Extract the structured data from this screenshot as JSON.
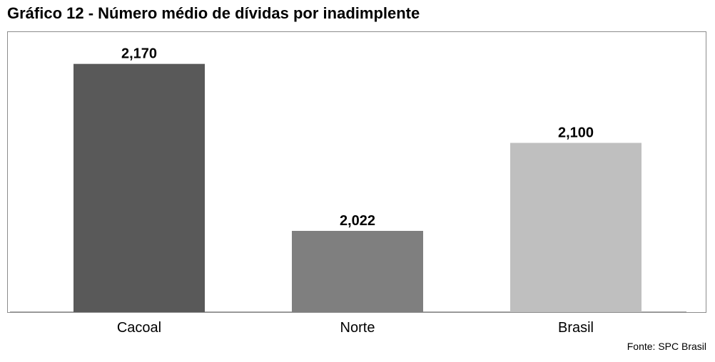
{
  "title": "Gráfico 12 - Número médio de dívidas por inadimplente",
  "source": "Fonte: SPC Brasil",
  "chart_data": {
    "type": "bar",
    "title": "Gráfico 12 - Número médio de dívidas por inadimplente",
    "xlabel": "",
    "ylabel": "",
    "categories": [
      "Cacoal",
      "Norte",
      "Brasil"
    ],
    "values": [
      2.17,
      2.022,
      2.1
    ],
    "value_labels": [
      "2,170",
      "2,022",
      "2,100"
    ],
    "colors": [
      "#595959",
      "#7f7f7f",
      "#bfbfbf"
    ],
    "ylim": [
      1.95,
      2.19
    ],
    "grid": false,
    "legend": "none"
  }
}
